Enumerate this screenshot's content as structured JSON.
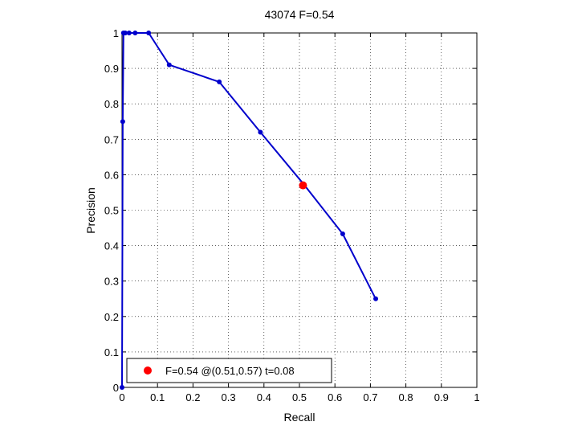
{
  "chart_data": {
    "type": "line",
    "title": "43074 F=0.54",
    "xlabel": "Recall",
    "ylabel": "Precision",
    "xlim": [
      0,
      1
    ],
    "ylim": [
      0,
      1
    ],
    "xticks": [
      0,
      0.1,
      0.2,
      0.3,
      0.4,
      0.5,
      0.6,
      0.7,
      0.8,
      0.9,
      1
    ],
    "yticks": [
      0,
      0.1,
      0.2,
      0.3,
      0.4,
      0.5,
      0.6,
      0.7,
      0.8,
      0.9,
      1
    ],
    "xtick_labels": [
      "0",
      "0.1",
      "0.2",
      "0.3",
      "0.4",
      "0.5",
      "0.6",
      "0.7",
      "0.8",
      "0.9",
      "1"
    ],
    "ytick_labels": [
      "0",
      "0.1",
      "0.2",
      "0.3",
      "0.4",
      "0.5",
      "0.6",
      "0.7",
      "0.8",
      "0.9",
      "1"
    ],
    "grid": true,
    "grid_style": "dotted",
    "series": [
      {
        "color": "#0000cc",
        "marker": "dot",
        "x": [
          0.0,
          0.002,
          0.004,
          0.009,
          0.02,
          0.037,
          0.075,
          0.133,
          0.274,
          0.39,
          0.513,
          0.622,
          0.715
        ],
        "y": [
          0.0,
          0.75,
          1.0,
          1.0,
          1.0,
          1.0,
          1.0,
          0.91,
          0.862,
          0.72,
          0.572,
          0.433,
          0.25
        ]
      }
    ],
    "highlight_point": {
      "x": 0.51,
      "y": 0.57,
      "color": "#ff0000"
    },
    "legend": {
      "position": "bottom-left",
      "label": "F=0.54 @(0.51,0.57) t=0.08"
    }
  }
}
